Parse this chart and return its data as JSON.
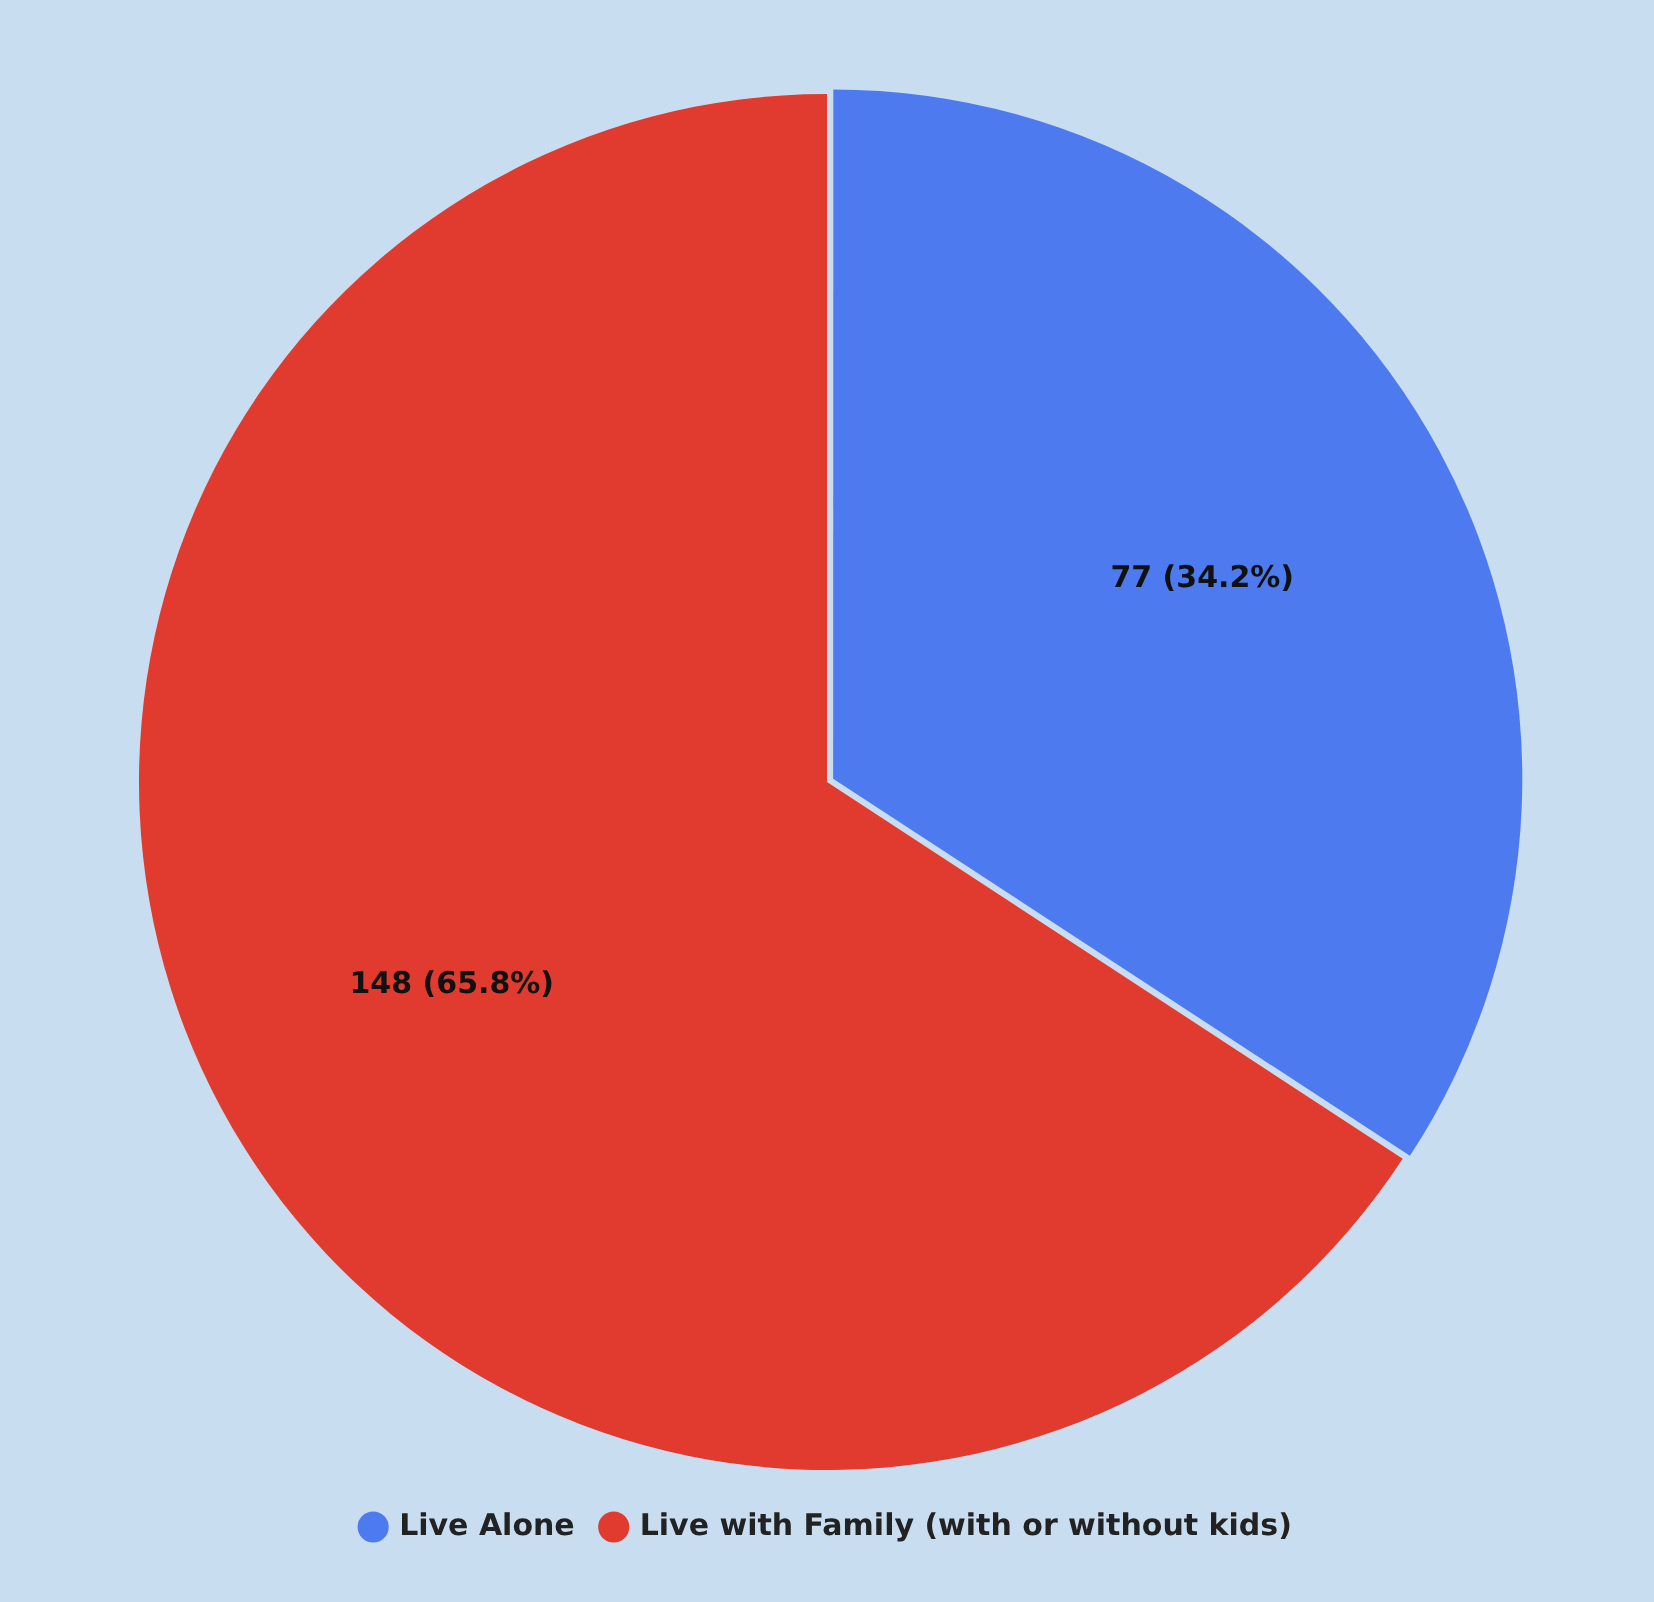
{
  "chart_data": {
    "type": "pie",
    "categories": [
      "Live Alone",
      "Live with Family (with or without kids)"
    ],
    "values": [
      77,
      148
    ],
    "colors": [
      "#4e7af0",
      "#e03b2e"
    ],
    "value_labels": [
      "77 (34.2%)",
      "148 (65.8%)"
    ],
    "legend": "bottom"
  }
}
